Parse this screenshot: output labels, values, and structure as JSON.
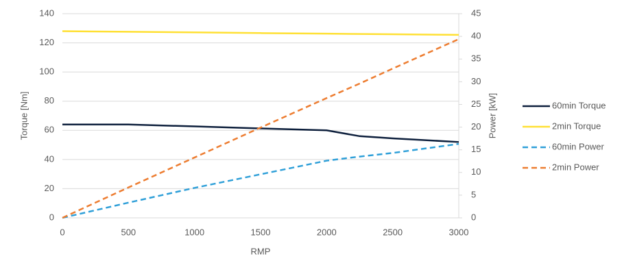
{
  "chart_data": {
    "type": "line",
    "x_label": "RMP",
    "y_label": "Torque [Nm]",
    "y2_label": "Power [kW]",
    "x": [
      0,
      500,
      1000,
      1500,
      2000,
      2250,
      2500,
      3000
    ],
    "series": [
      {
        "name": "60min Torque",
        "color": "#0d1f3c",
        "style": "solid",
        "values": [
          64,
          64,
          62.7,
          61.3,
          60,
          56,
          54.5,
          52
        ]
      },
      {
        "name": "2min Torque",
        "color": "#ffe033",
        "style": "solid",
        "values": [
          128,
          127.6,
          127.2,
          126.7,
          126.3,
          126.1,
          125.9,
          125.5
        ]
      },
      {
        "name": "60min Power",
        "color": "#2e9fd8",
        "style": "dashed",
        "axis": "y2",
        "values": [
          0,
          3.35,
          6.6,
          9.6,
          12.6,
          13.5,
          14.3,
          16.3
        ]
      },
      {
        "name": "2min Power",
        "color": "#ed7d31",
        "style": "dashed",
        "axis": "y2",
        "values": [
          0,
          6.7,
          13.3,
          19.9,
          26.4,
          29.6,
          32.9,
          39.4
        ]
      }
    ],
    "xlim": [
      0,
      3000
    ],
    "xticks": [
      0,
      500,
      1000,
      1500,
      2000,
      2500,
      3000
    ],
    "ylim": [
      0,
      140
    ],
    "yticks": [
      0,
      20,
      40,
      60,
      80,
      100,
      120,
      140
    ],
    "y2lim": [
      0,
      45
    ],
    "y2ticks": [
      0,
      5,
      10,
      15,
      20,
      25,
      30,
      35,
      40,
      45
    ],
    "grid": true
  }
}
